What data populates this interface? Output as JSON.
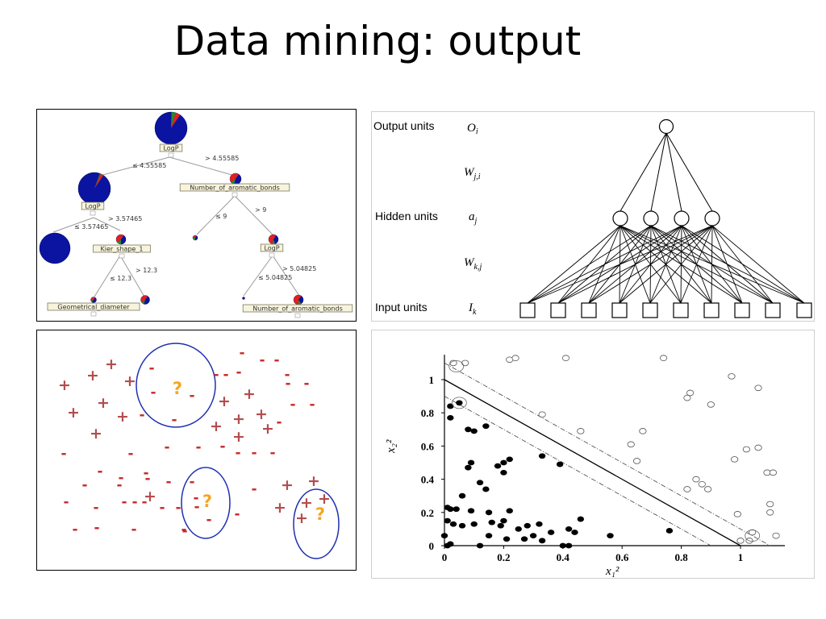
{
  "title": "Data mining: output",
  "tree": {
    "nodes": {
      "root": "LogP",
      "left": "LogP",
      "right": "Number_of_aromatic_bonds",
      "left_right": "Kier_shape_1",
      "right_right": "LogP",
      "leaf_geo": "Geometrical_diameter",
      "leaf_nab": "Number_of_aromatic_bonds"
    },
    "edges": {
      "root_le": "≤ 4.55585",
      "root_gt": "> 4.55585",
      "left_le": "≤ 3.57465",
      "left_gt": "> 3.57465",
      "nab_le": "≤ 9",
      "nab_gt": "> 9",
      "kier_le": "≤ 12.3",
      "kier_gt": "> 12.3",
      "logp2_le": "≤ 5.04825",
      "logp2_gt": "> 5.04825"
    }
  },
  "network": {
    "output_label": "Output units",
    "output_sym": "O",
    "output_sub": "i",
    "w_ji": "W",
    "w_ji_sub": "j,i",
    "hidden_label": "Hidden units",
    "hidden_sym": "a",
    "hidden_sub": "j",
    "w_kj": "W",
    "w_kj_sub": "k,j",
    "input_label": "Input units",
    "input_sym": "I",
    "input_sub": "k"
  },
  "clusters": {
    "plus_symbol": "+",
    "minus_symbol": "-",
    "question_symbol": "?",
    "plus_color": "#b34d4d",
    "minus_color": "#c62828",
    "question_color": "#f5a623",
    "ellipse_color": "#1f2fb0"
  },
  "chart_data": {
    "type": "scatter",
    "title": "",
    "xlabel": "x₁²",
    "ylabel": "x₂²",
    "xlim": [
      0,
      1.15
    ],
    "ylim": [
      0,
      1.15
    ],
    "xticks": [
      0,
      0.2,
      0.4,
      0.6,
      0.8,
      1
    ],
    "yticks": [
      0,
      0.2,
      0.4,
      0.6,
      0.8,
      1
    ],
    "xtick_labels": [
      "0",
      "0.2",
      "0.4",
      "0.6",
      "0.8",
      "1"
    ],
    "ytick_labels": [
      "0",
      "0.2",
      "0.4",
      "0.6",
      "0.8",
      "1"
    ],
    "decision_boundary": {
      "x_intercept": 1.0,
      "y_intercept": 1.0
    },
    "margin_lines": [
      {
        "x_intercept": 0.9,
        "y_intercept": 0.9
      },
      {
        "x_intercept": 1.1,
        "y_intercept": 1.1
      }
    ],
    "series": [
      {
        "filled": true,
        "points": [
          [
            0.02,
            0.84
          ],
          [
            0.05,
            0.86
          ],
          [
            0.08,
            0.7
          ],
          [
            0.1,
            0.69
          ],
          [
            0.14,
            0.72
          ],
          [
            0.02,
            0.77
          ],
          [
            0.08,
            0.47
          ],
          [
            0.09,
            0.5
          ],
          [
            0.18,
            0.48
          ],
          [
            0.2,
            0.5
          ],
          [
            0.22,
            0.52
          ],
          [
            0.33,
            0.54
          ],
          [
            0.39,
            0.49
          ],
          [
            0.12,
            0.38
          ],
          [
            0.14,
            0.34
          ],
          [
            0.2,
            0.44
          ],
          [
            0.06,
            0.3
          ],
          [
            0.01,
            0.23
          ],
          [
            0.02,
            0.22
          ],
          [
            0.04,
            0.22
          ],
          [
            0.09,
            0.21
          ],
          [
            0.15,
            0.2
          ],
          [
            0.01,
            0.15
          ],
          [
            0.03,
            0.13
          ],
          [
            0.06,
            0.12
          ],
          [
            0.1,
            0.13
          ],
          [
            0.16,
            0.14
          ],
          [
            0.2,
            0.15
          ],
          [
            0.22,
            0.21
          ],
          [
            0.25,
            0.1
          ],
          [
            0.28,
            0.12
          ],
          [
            0.32,
            0.13
          ],
          [
            0.36,
            0.08
          ],
          [
            0.42,
            0.1
          ],
          [
            0.44,
            0.08
          ],
          [
            0.46,
            0.16
          ],
          [
            0.19,
            0.12
          ],
          [
            0.15,
            0.06
          ],
          [
            0.21,
            0.04
          ],
          [
            0.27,
            0.04
          ],
          [
            0.3,
            0.06
          ],
          [
            0.33,
            0.03
          ],
          [
            0.4,
            0.0
          ],
          [
            0.42,
            0.0
          ],
          [
            0.0,
            0.06
          ],
          [
            0.01,
            0.0
          ],
          [
            0.02,
            0.01
          ],
          [
            0.12,
            0.0
          ],
          [
            0.56,
            0.06
          ],
          [
            0.76,
            0.09
          ]
        ]
      },
      {
        "filled": false,
        "points": [
          [
            0.03,
            1.1
          ],
          [
            0.07,
            1.1
          ],
          [
            0.22,
            1.12
          ],
          [
            0.24,
            1.13
          ],
          [
            0.41,
            1.13
          ],
          [
            0.74,
            1.13
          ],
          [
            0.97,
            1.02
          ],
          [
            1.06,
            0.95
          ],
          [
            0.83,
            0.92
          ],
          [
            0.82,
            0.89
          ],
          [
            0.9,
            0.85
          ],
          [
            0.33,
            0.79
          ],
          [
            0.46,
            0.69
          ],
          [
            0.67,
            0.69
          ],
          [
            0.63,
            0.61
          ],
          [
            1.02,
            0.58
          ],
          [
            1.06,
            0.59
          ],
          [
            0.65,
            0.51
          ],
          [
            0.98,
            0.52
          ],
          [
            1.09,
            0.44
          ],
          [
            1.11,
            0.44
          ],
          [
            0.85,
            0.4
          ],
          [
            0.82,
            0.34
          ],
          [
            0.87,
            0.37
          ],
          [
            0.89,
            0.34
          ],
          [
            1.1,
            0.25
          ],
          [
            1.1,
            0.2
          ],
          [
            1.12,
            0.06
          ],
          [
            0.99,
            0.19
          ],
          [
            1.03,
            0.03
          ],
          [
            1.04,
            0.08
          ],
          [
            1.0,
            0.03
          ]
        ]
      }
    ],
    "support_vectors": [
      [
        0.04,
        1.08
      ],
      [
        0.05,
        0.86
      ],
      [
        1.04,
        0.06
      ]
    ]
  }
}
